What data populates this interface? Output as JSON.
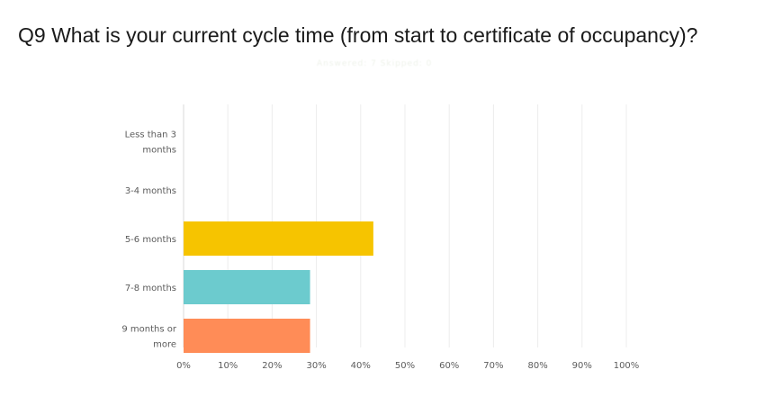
{
  "header": {
    "title": "Q9 What is your current cycle time (from start to certificate of occupancy)?",
    "subtitle": "Answered: 7  Skipped: 0"
  },
  "chart_data": {
    "type": "bar",
    "orientation": "horizontal",
    "title": "Q9 What is your current cycle time (from start to certificate of occupancy)?",
    "categories": [
      [
        "Less than 3",
        "months"
      ],
      [
        "3-4 months"
      ],
      [
        "5-6 months"
      ],
      [
        "7-8 months"
      ],
      [
        "9 months or",
        "more"
      ]
    ],
    "values": [
      0,
      0,
      42.86,
      28.57,
      28.57
    ],
    "colors": [
      "#3aa0d8",
      "#3aa0d8",
      "#f6c400",
      "#6ccbce",
      "#ff8c57"
    ],
    "xlim": [
      0,
      100
    ],
    "xticks": [
      "0%",
      "10%",
      "20%",
      "30%",
      "40%",
      "50%",
      "60%",
      "70%",
      "80%",
      "90%",
      "100%"
    ],
    "grid": true,
    "legend": "none"
  }
}
